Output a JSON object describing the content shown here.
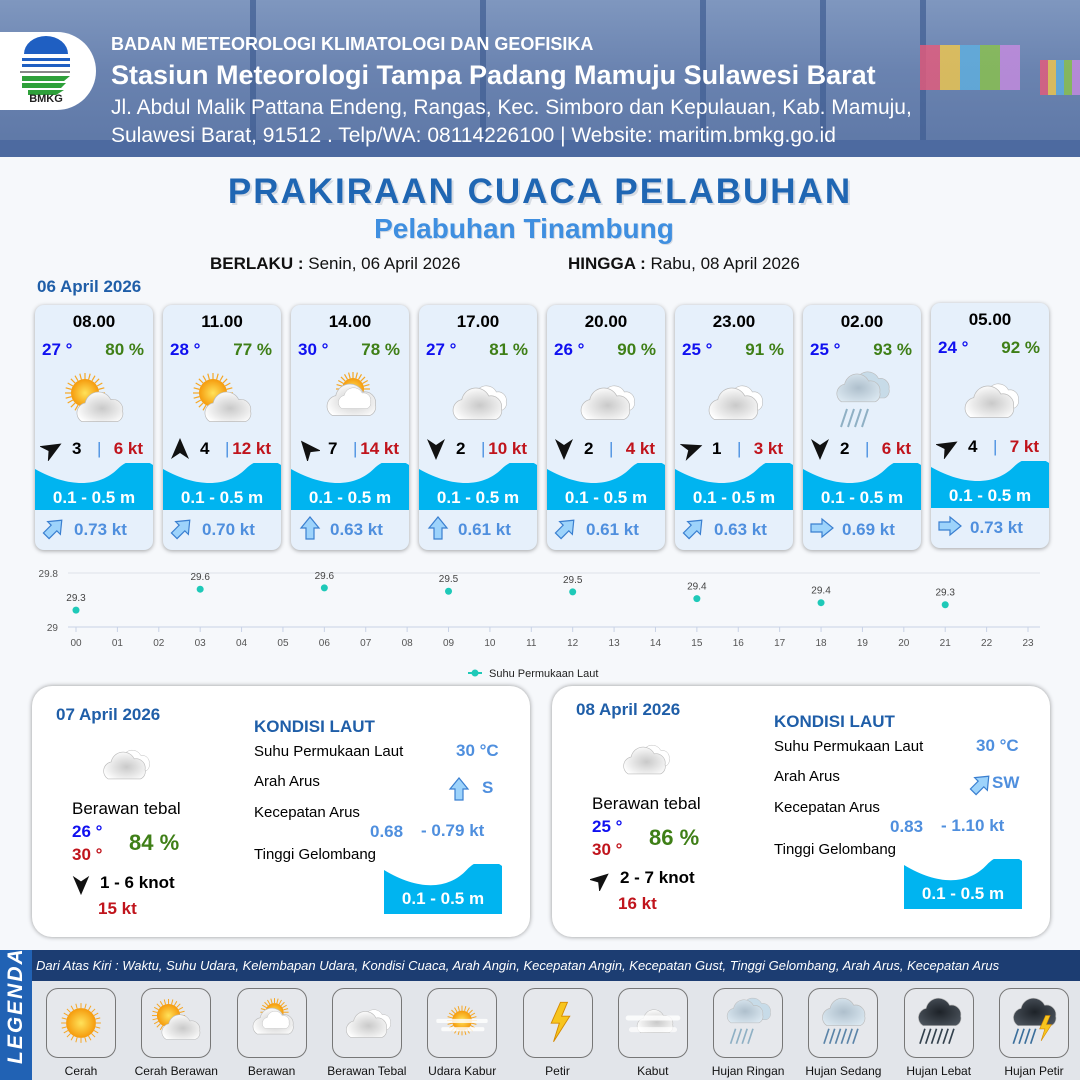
{
  "header": {
    "agency": "BADAN METEOROLOGI KLIMATOLOGI DAN GEOFISIKA",
    "station": "Stasiun Meteorologi Tampa Padang Mamuju Sulawesi Barat",
    "address_line1": "Jl. Abdul Malik Pattana Endeng, Rangas, Kec. Simboro dan Kepulauan, Kab. Mamuju,",
    "address_line2": "Sulawesi Barat, 91512 . Telp/WA: 08114226100 | Website: maritim.bmkg.go.id",
    "logo_text": "BMKG"
  },
  "title": "PRAKIRAAN CUACA PELABUHAN",
  "subtitle": "Pelabuhan Tinambung",
  "validity": {
    "from_label": "BERLAKU :",
    "from_value": "Senin, 06 April 2026",
    "to_label": "HINGGA :",
    "to_value": "Rabu, 08 April 2026"
  },
  "day1_date": "06 April 2026",
  "colors": {
    "temp": "#1010f0",
    "humidity": "#3f7f17",
    "gust": "#c0141c",
    "wave": "#00b4f0",
    "current": "#4f8fde",
    "title": "#1f66b3",
    "sst_marker": "#1ec9b8"
  },
  "hourly": [
    {
      "time": "08.00",
      "temp": "27 °",
      "hum": "80 %",
      "icon": "cerah-berawan",
      "wind_dir_deg": 60,
      "wind": "3",
      "sep": "|",
      "gust": "6 kt",
      "wave": "0.1 - 0.5 m",
      "current_dir_deg": 225,
      "current": "0.73 kt"
    },
    {
      "time": "11.00",
      "temp": "28 °",
      "hum": "77 %",
      "icon": "cerah-berawan",
      "wind_dir_deg": 0,
      "wind": "4",
      "sep": "|",
      "gust": "12 kt",
      "wave": "0.1 - 0.5 m",
      "current_dir_deg": 225,
      "current": "0.70 kt"
    },
    {
      "time": "14.00",
      "temp": "30 °",
      "hum": "78 %",
      "icon": "berawan",
      "wind_dir_deg": -40,
      "wind": "7",
      "sep": "|",
      "gust": "14 kt",
      "wave": "0.1 - 0.5 m",
      "current_dir_deg": 180,
      "current": "0.63 kt"
    },
    {
      "time": "17.00",
      "temp": "27 °",
      "hum": "81 %",
      "icon": "berawan-tebal",
      "wind_dir_deg": 180,
      "wind": "2",
      "sep": "|",
      "gust": "10 kt",
      "wave": "0.1 - 0.5 m",
      "current_dir_deg": 180,
      "current": "0.61 kt"
    },
    {
      "time": "20.00",
      "temp": "26 °",
      "hum": "90 %",
      "icon": "berawan-tebal",
      "wind_dir_deg": 180,
      "wind": "2",
      "sep": "|",
      "gust": "4 kt",
      "wave": "0.1 - 0.5 m",
      "current_dir_deg": 225,
      "current": "0.61 kt"
    },
    {
      "time": "23.00",
      "temp": "25 °",
      "hum": "91 %",
      "icon": "berawan-tebal",
      "wind_dir_deg": 70,
      "wind": "1",
      "sep": "|",
      "gust": "3 kt",
      "wave": "0.1 - 0.5 m",
      "current_dir_deg": 225,
      "current": "0.63 kt"
    },
    {
      "time": "02.00",
      "temp": "25 °",
      "hum": "93 %",
      "icon": "hujan-ringan",
      "wind_dir_deg": 180,
      "wind": "2",
      "sep": "|",
      "gust": "6 kt",
      "wave": "0.1 - 0.5 m",
      "current_dir_deg": 270,
      "current": "0.69 kt"
    },
    {
      "time": "05.00",
      "temp": "24 °",
      "hum": "92 %",
      "icon": "berawan-tebal",
      "wind_dir_deg": 60,
      "wind": "4",
      "sep": "|",
      "gust": "7 kt",
      "wave": "0.1 - 0.5 m",
      "current_dir_deg": 270,
      "current": "0.73 kt"
    }
  ],
  "chart_data": {
    "type": "scatter",
    "x": [
      "00",
      "03",
      "06",
      "09",
      "12",
      "15",
      "18",
      "21"
    ],
    "values": [
      29.25,
      29.56,
      29.58,
      29.53,
      29.52,
      29.42,
      29.36,
      29.33
    ],
    "data_labels": [
      "29.3",
      "29.6",
      "29.6",
      "29.5",
      "29.5",
      "29.4",
      "29.4",
      "29.3"
    ],
    "x_ticks": [
      "00",
      "01",
      "02",
      "03",
      "04",
      "05",
      "06",
      "07",
      "08",
      "09",
      "10",
      "11",
      "12",
      "13",
      "14",
      "15",
      "16",
      "17",
      "18",
      "19",
      "20",
      "21",
      "22",
      "23"
    ],
    "y_ticks": [
      "29",
      "29.8"
    ],
    "ylim": [
      29,
      29.8
    ],
    "legend": "Suhu Permukaan Laut",
    "legend_position": "bottom",
    "grid": true
  },
  "daily": [
    {
      "date": "07 April 2026",
      "icon": "berawan-tebal",
      "condition": "Berawan tebal",
      "tmin": "26 °",
      "tmax": "30 °",
      "hum": "84 %",
      "wind_dir_deg": 180,
      "wind": "1  - 6 knot",
      "gust": "15 kt",
      "kondisi_label": "KONDISI LAUT",
      "sst_label": "Suhu Permukaan Laut",
      "sst": "30 °C",
      "arah_label": "Arah Arus",
      "current_dir_deg": 180,
      "current_dir": "S",
      "kecepatan_label": "Kecepatan Arus",
      "cur_min": "0.68",
      "cur_max": "- 0.79 kt",
      "tinggi_label": "Tinggi Gelombang",
      "wave": "0.1 - 0.5 m"
    },
    {
      "date": "08 April 2026",
      "icon": "berawan-tebal",
      "condition": "Berawan tebal",
      "tmin": "25 °",
      "tmax": "30 °",
      "hum": "86 %",
      "wind_dir_deg": 50,
      "wind": "2  - 7 knot",
      "gust": "16 kt",
      "kondisi_label": "KONDISI LAUT",
      "sst_label": "Suhu Permukaan Laut",
      "sst": "30 °C",
      "arah_label": "Arah Arus",
      "current_dir_deg": 225,
      "current_dir": "SW",
      "kecepatan_label": "Kecepatan Arus",
      "cur_min": "0.83",
      "cur_max": "- 1.10 kt",
      "tinggi_label": "Tinggi Gelombang",
      "wave": "0.1 - 0.5 m"
    }
  ],
  "legend": {
    "side_label": "LEGENDA",
    "description": "Dari Atas Kiri : Waktu, Suhu Udara, Kelembapan Udara, Kondisi Cuaca, Arah Angin, Kecepatan Angin, Kecepatan Gust, Tinggi Gelombang, Arah Arus, Kecepatan Arus",
    "items": [
      {
        "label": "Cerah",
        "icon": "cerah"
      },
      {
        "label": "Cerah Berawan",
        "icon": "cerah-berawan"
      },
      {
        "label": "Berawan",
        "icon": "berawan"
      },
      {
        "label": "Berawan Tebal",
        "icon": "berawan-tebal"
      },
      {
        "label": "Udara Kabur",
        "icon": "udara-kabur"
      },
      {
        "label": "Petir",
        "icon": "petir"
      },
      {
        "label": "Kabut",
        "icon": "kabut"
      },
      {
        "label": "Hujan Ringan",
        "icon": "hujan-ringan"
      },
      {
        "label": "Hujan Sedang",
        "icon": "hujan-sedang"
      },
      {
        "label": "Hujan Lebat",
        "icon": "hujan-lebat"
      },
      {
        "label": "Hujan Petir",
        "icon": "hujan-petir"
      }
    ]
  }
}
